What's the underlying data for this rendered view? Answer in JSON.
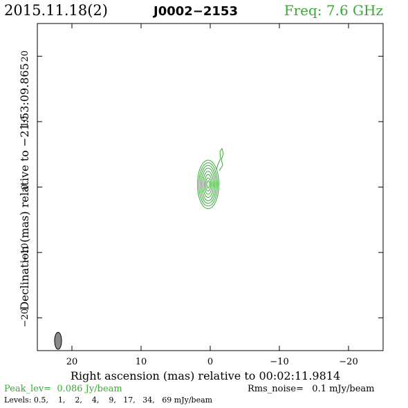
{
  "header": {
    "date": "2015.11.18(2)",
    "source": "J0002−2153",
    "freq": "Freq: 7.6 GHz"
  },
  "footer": {
    "peak": "Peak_lev=  0.086 Jy/beam",
    "rms": "Rms_noise=   0.1 mJy/beam",
    "levels": "Levels: 0.5,    1,    2,    4,    9,   17,   34,   69 mJy/beam"
  },
  "colors": {
    "contour": "#3aa836",
    "freq_text": "#3aa836",
    "peak_text": "#3aa836",
    "beam_fill": "#8a8a8a",
    "axis": "#000000"
  },
  "chart_data": {
    "type": "contour",
    "xlabel": "Right ascension (mas) relative to 00:02:11.9814",
    "ylabel": "Declination (mas) relative to −21:53:09.865",
    "xlim": [
      25,
      -25
    ],
    "ylim": [
      -25,
      25
    ],
    "x_ticks": [
      20,
      10,
      0,
      -10,
      -20
    ],
    "y_ticks": [
      20,
      10,
      0,
      -10,
      -20
    ],
    "x_tick_labels": [
      "20",
      "10",
      "0",
      "−10",
      "−20"
    ],
    "y_tick_labels": [
      "20",
      "10",
      "0",
      "−10",
      "−20"
    ],
    "contour_levels_mJy": [
      0.5,
      1,
      2,
      4,
      9,
      17,
      34,
      69
    ],
    "peak_Jy_per_beam": 0.086,
    "rms_mJy_per_beam": 0.1,
    "source_center_mas": [
      0.3,
      0.4
    ],
    "contours": [
      {
        "level": 0.5,
        "rx": 1.55,
        "ry": 3.7
      },
      {
        "level": 1,
        "rx": 1.35,
        "ry": 3.3
      },
      {
        "level": 2,
        "rx": 1.15,
        "ry": 2.9
      },
      {
        "level": 4,
        "rx": 0.95,
        "ry": 2.5
      },
      {
        "level": 9,
        "rx": 0.75,
        "ry": 2.0
      },
      {
        "level": 17,
        "rx": 0.55,
        "ry": 1.5
      },
      {
        "level": 34,
        "rx": 0.38,
        "ry": 1.0
      },
      {
        "level": 69,
        "rx": 0.2,
        "ry": 0.55
      }
    ],
    "jet_extension_mas": [
      [
        -1.3,
        2.5
      ],
      [
        -1.8,
        3.3
      ],
      [
        -1.6,
        4.2
      ],
      [
        -1.9,
        5.1
      ],
      [
        -1.7,
        5.9
      ],
      [
        -1.4,
        5.4
      ],
      [
        -1.5,
        4.4
      ],
      [
        -1.1,
        3.4
      ],
      [
        -0.9,
        2.7
      ]
    ],
    "beam": {
      "x": 22.0,
      "y": -23.5,
      "bmaj": 2.6,
      "bmin": 1.0
    }
  }
}
